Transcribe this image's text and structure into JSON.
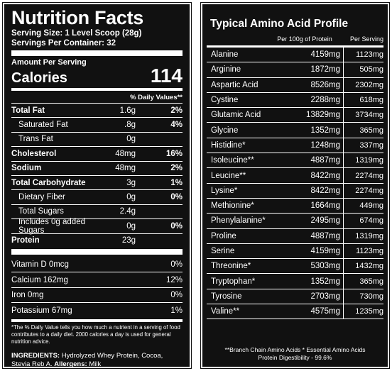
{
  "nutrition": {
    "title": "Nutrition Facts",
    "serving_size": "Serving Size: 1 Level Scoop (28g)",
    "servings_per_container": "Servings Per Container: 32",
    "amount_per_serving": "Amount Per Serving",
    "calories_label": "Calories",
    "calories_value": "114",
    "daily_values_header": "% Daily Values**",
    "rows": [
      {
        "label": "Total Fat",
        "amount": "1.6g",
        "dv": "2%",
        "bold": true,
        "indent": 0
      },
      {
        "label": "Saturated Fat",
        "amount": ".8g",
        "dv": "4%",
        "bold": false,
        "indent": 1
      },
      {
        "label": "Trans Fat",
        "amount": "0g",
        "dv": "",
        "bold": false,
        "indent": 1
      },
      {
        "label": "Cholesterol",
        "amount": "48mg",
        "dv": "16%",
        "bold": true,
        "indent": 0
      },
      {
        "label": "Sodium",
        "amount": "48mg",
        "dv": "2%",
        "bold": true,
        "indent": 0
      },
      {
        "label": "Total Carbohydrate",
        "amount": "3g",
        "dv": "1%",
        "bold": true,
        "indent": 0
      },
      {
        "label": "Dietary Fiber",
        "amount": "0g",
        "dv": "0%",
        "bold": false,
        "indent": 1
      },
      {
        "label": "Total Sugars",
        "amount": "2.4g",
        "dv": "",
        "bold": false,
        "indent": 1
      },
      {
        "label": "Includes 0g added Sugars",
        "amount": "0g",
        "dv": "0%",
        "bold": false,
        "indent": 1
      },
      {
        "label": "Protein",
        "amount": "23g",
        "dv": "",
        "bold": true,
        "indent": 0
      }
    ],
    "vitamins": [
      {
        "label": "Vitamin D 0mcg",
        "dv": "0%"
      },
      {
        "label": "Calcium 162mg",
        "dv": "12%"
      },
      {
        "label": "Iron 0mg",
        "dv": "0%"
      },
      {
        "label": "Potassium 67mg",
        "dv": "1%"
      }
    ],
    "footnote": "*The % Daily Value tells you how much a nutrient in a serving of food contributes to a daily diet. 2000 calories a day is used for general nutrition advice.",
    "ingredients_label": "INGREDIENTS:",
    "ingredients_text": "Hydrolyzed Whey Protein, Cocoa, Stevia Reb A.",
    "allergens_label": "Allergens:",
    "allergens_text": "Milk"
  },
  "amino": {
    "title": "Typical Amino Acid Profile",
    "col_per100": "Per 100g of Protein",
    "col_serving": "Per Serving",
    "rows": [
      {
        "name": "Alanine",
        "per100": "4159mg",
        "serving": "1123mg"
      },
      {
        "name": "Arginine",
        "per100": "1872mg",
        "serving": "505mg"
      },
      {
        "name": "Aspartic Acid",
        "per100": "8526mg",
        "serving": "2302mg"
      },
      {
        "name": "Cystine",
        "per100": "2288mg",
        "serving": "618mg"
      },
      {
        "name": "Glutamic Acid",
        "per100": "13829mg",
        "serving": "3734mg"
      },
      {
        "name": "Glycine",
        "per100": "1352mg",
        "serving": "365mg"
      },
      {
        "name": "Histidine*",
        "per100": "1248mg",
        "serving": "337mg"
      },
      {
        "name": "Isoleucine**",
        "per100": "4887mg",
        "serving": "1319mg"
      },
      {
        "name": "Leucine**",
        "per100": "8422mg",
        "serving": "2274mg"
      },
      {
        "name": "Lysine*",
        "per100": "8422mg",
        "serving": "2274mg"
      },
      {
        "name": "Methionine*",
        "per100": "1664mg",
        "serving": "449mg"
      },
      {
        "name": "Phenylalanine*",
        "per100": "2495mg",
        "serving": "674mg"
      },
      {
        "name": "Proline",
        "per100": "4887mg",
        "serving": "1319mg"
      },
      {
        "name": "Serine",
        "per100": "4159mg",
        "serving": "1123mg"
      },
      {
        "name": "Threonine*",
        "per100": "5303mg",
        "serving": "1432mg"
      },
      {
        "name": "Tryptophan*",
        "per100": "1352mg",
        "serving": "365mg"
      },
      {
        "name": "Tyrosine",
        "per100": "2703mg",
        "serving": "730mg"
      },
      {
        "name": "Valine**",
        "per100": "4575mg",
        "serving": "1235mg"
      }
    ],
    "footnote_line1": "**Branch Chain Amino Acids   * Essential Amino Acids",
    "footnote_line2": "Protein Digestibility - 99.6%"
  }
}
